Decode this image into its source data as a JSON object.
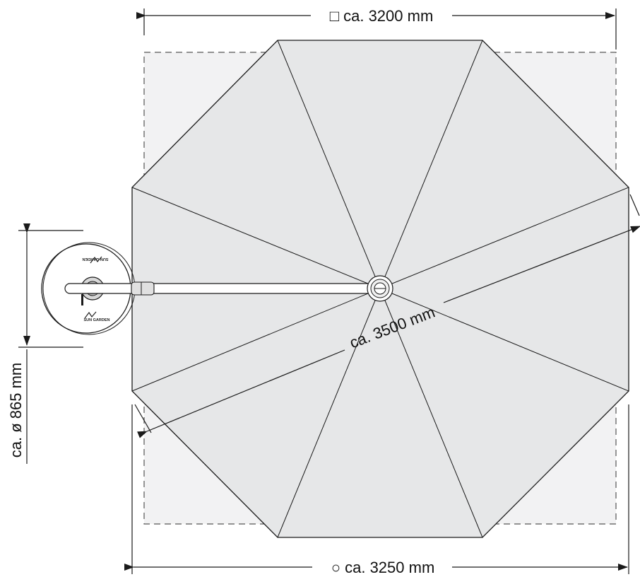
{
  "dimensions": {
    "square_width": "□ ca. 3200 mm",
    "round_width": "○ ca. 3250 mm",
    "diagonal": "ca. 3500 mm",
    "base_diameter": "ca. ø 865 mm"
  },
  "base_logo_top": "SUN GARDEN",
  "base_logo_bottom": "SUN GARDEN",
  "colors": {
    "canopy_fill": "#e6e7e8",
    "square_fill": "#f2f2f3",
    "line": "#1a1a1a",
    "dash": "#555555"
  }
}
